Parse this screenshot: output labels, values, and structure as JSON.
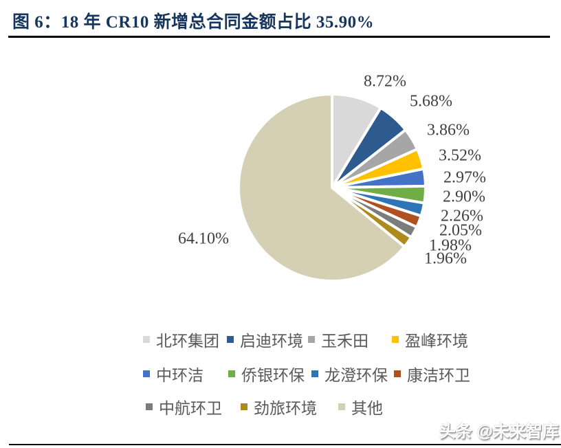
{
  "title": "图 6：18 年 CR10 新增总合同金额占比 35.90%",
  "watermark": "头条 @未来智库",
  "colors": {
    "title_text": "#17365D",
    "percent_label_text": "#3F3F3F",
    "legend_text": "#595959",
    "divider": "#000000",
    "background": "#FFFFFF"
  },
  "chart_data": {
    "type": "pie",
    "title": "18 年 CR10 新增总合同金额占比 35.90%",
    "legend_position": "bottom",
    "start_angle_deg": 0,
    "direction": "clockwise",
    "slices": [
      {
        "label": "北环集团",
        "value": 8.72,
        "display": "8.72%",
        "color": "#D9D9D9"
      },
      {
        "label": "启迪环境",
        "value": 5.68,
        "display": "5.68%",
        "color": "#2E5B8F"
      },
      {
        "label": "玉禾田",
        "value": 3.86,
        "display": "3.86%",
        "color": "#A6A6A6"
      },
      {
        "label": "盈峰环境",
        "value": 3.52,
        "display": "3.52%",
        "color": "#FFC000"
      },
      {
        "label": "中环洁",
        "value": 2.97,
        "display": "2.97%",
        "color": "#4472C4"
      },
      {
        "label": "侨银环保",
        "value": 2.9,
        "display": "2.90%",
        "color": "#70AD47"
      },
      {
        "label": "龙澄环保",
        "value": 2.26,
        "display": "2.26%",
        "color": "#2E75B6"
      },
      {
        "label": "康洁环卫",
        "value": 2.05,
        "display": "2.05%",
        "color": "#B05020"
      },
      {
        "label": "中航环卫",
        "value": 1.98,
        "display": "1.98%",
        "color": "#7C7C7C"
      },
      {
        "label": "劲旅环境",
        "value": 1.96,
        "display": "1.96%",
        "color": "#AD8A1C"
      },
      {
        "label": "其他",
        "value": 64.1,
        "display": "64.10%",
        "color": "#D5CFB4"
      }
    ]
  }
}
